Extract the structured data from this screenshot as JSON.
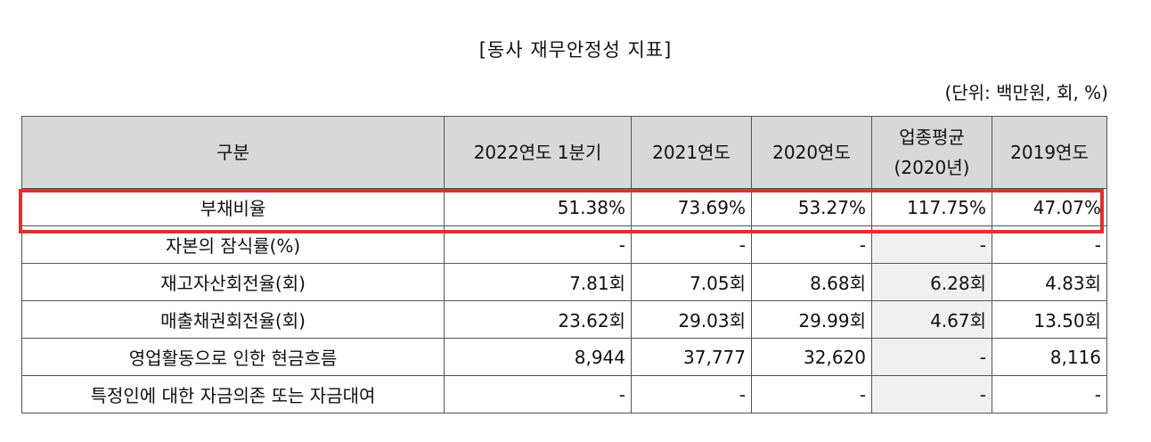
{
  "title": "[동사 재무안정성 지표]",
  "unit": "(단위: 백만원, 회, %)",
  "table": {
    "headers": {
      "category": "구분",
      "col1": "2022연도 1분기",
      "col2": "2021연도",
      "col3": "2020연도",
      "col4_line1": "업종평균",
      "col4_line2": "(2020년)",
      "col5": "2019연도"
    },
    "rows": [
      {
        "label": "부채비율",
        "values": [
          "51.38%",
          "73.69%",
          "53.27%",
          "117.75%",
          "47.07%"
        ]
      },
      {
        "label": "자본의 잠식률(%)",
        "values": [
          "-",
          "-",
          "-",
          "-",
          "-"
        ]
      },
      {
        "label": "재고자산회전율(회)",
        "values": [
          "7.81회",
          "7.05회",
          "8.68회",
          "6.28회",
          "4.83회"
        ]
      },
      {
        "label": "매출채권회전율(회)",
        "values": [
          "23.62회",
          "29.03회",
          "29.99회",
          "4.67회",
          "13.50회"
        ]
      },
      {
        "label": "영업활동으로 인한 현금흐름",
        "values": [
          "8,944",
          "37,777",
          "32,620",
          "-",
          "8,116"
        ]
      },
      {
        "label": "특정인에 대한 자금의존 또는 자금대여",
        "values": [
          "-",
          "-",
          "-",
          "-",
          "-"
        ]
      }
    ]
  },
  "highlight": {
    "row": "부채비율",
    "color": "#e03030"
  },
  "colors": {
    "header_bg": "#d8d8d8",
    "industry_avg_bg": "#f0f0f0"
  }
}
